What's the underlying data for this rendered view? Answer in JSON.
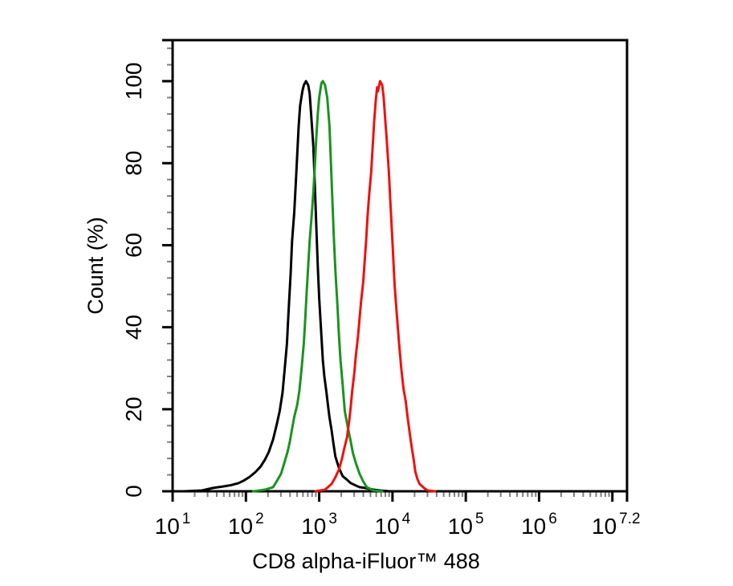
{
  "figure": {
    "background": "#ffffff",
    "kind": "flow-cytometry-histogram-overlay"
  },
  "chart_data": {
    "type": "line",
    "title": "",
    "xlabel": "CD8 alpha-iFluor™ 488",
    "ylabel": "Count  (%)",
    "grid": false,
    "legend": "none",
    "x_scale": "log10",
    "x_range_log10": [
      1,
      7.2
    ],
    "y_range": [
      0,
      110
    ],
    "y_major_ticks": [
      0,
      20,
      40,
      60,
      80,
      100
    ],
    "y_minor_step": 4,
    "x_major_ticks_log10": [
      1,
      2,
      3,
      4,
      5,
      6,
      7,
      7.2
    ],
    "x_minor_multiples": [
      2,
      3,
      4,
      5,
      6,
      7,
      8,
      9
    ],
    "x_tick_labels": [
      {
        "base": "10",
        "exp": "1",
        "pos": 1.0
      },
      {
        "base": "10",
        "exp": "2",
        "pos": 2.0
      },
      {
        "base": "10",
        "exp": "3",
        "pos": 3.0
      },
      {
        "base": "10",
        "exp": "4",
        "pos": 4.0
      },
      {
        "base": "10",
        "exp": "5",
        "pos": 5.0
      },
      {
        "base": "10",
        "exp": "6",
        "pos": 6.0
      },
      {
        "base": "10",
        "exp": "7.2",
        "pos": 7.05
      }
    ],
    "axis_color": "#000000",
    "minor_tick_color": "#808080",
    "series": [
      {
        "name": "black-histogram",
        "color": "#000000",
        "peak_log10": 2.82,
        "peak_x_approx": 660,
        "peak_pct": 100,
        "points": [
          [
            1.15,
            0
          ],
          [
            1.4,
            0.2
          ],
          [
            1.55,
            0.8
          ],
          [
            1.7,
            1.2
          ],
          [
            1.8,
            1.5
          ],
          [
            1.9,
            2.0
          ],
          [
            1.97,
            2.6
          ],
          [
            2.05,
            3.5
          ],
          [
            2.13,
            4.7
          ],
          [
            2.2,
            6.0
          ],
          [
            2.26,
            7.7
          ],
          [
            2.31,
            9.5
          ],
          [
            2.37,
            12.6
          ],
          [
            2.42,
            16.2
          ],
          [
            2.46,
            19.5
          ],
          [
            2.5,
            24
          ],
          [
            2.53,
            30
          ],
          [
            2.56,
            36
          ],
          [
            2.58,
            43
          ],
          [
            2.61,
            53
          ],
          [
            2.63,
            61
          ],
          [
            2.66,
            68
          ],
          [
            2.68,
            75
          ],
          [
            2.7,
            82
          ],
          [
            2.72,
            89
          ],
          [
            2.74,
            94
          ],
          [
            2.77,
            97.5
          ],
          [
            2.79,
            99
          ],
          [
            2.82,
            100
          ],
          [
            2.85,
            99
          ],
          [
            2.87,
            97
          ],
          [
            2.89,
            92
          ],
          [
            2.92,
            84
          ],
          [
            2.94,
            75
          ],
          [
            2.96,
            65
          ],
          [
            2.98,
            55
          ],
          [
            3.0,
            47
          ],
          [
            3.03,
            38
          ],
          [
            3.05,
            32
          ],
          [
            3.07,
            28
          ],
          [
            3.1,
            24
          ],
          [
            3.12,
            21
          ],
          [
            3.14,
            18
          ],
          [
            3.17,
            14.8
          ],
          [
            3.19,
            12.2
          ],
          [
            3.22,
            8.5
          ],
          [
            3.27,
            5.7
          ],
          [
            3.32,
            3.7
          ],
          [
            3.38,
            2.8
          ],
          [
            3.43,
            2.0
          ],
          [
            3.5,
            1.4
          ],
          [
            3.55,
            1.0
          ],
          [
            3.63,
            0.8
          ],
          [
            3.74,
            0.4
          ],
          [
            3.83,
            0.2
          ],
          [
            3.96,
            0
          ]
        ]
      },
      {
        "name": "green-histogram",
        "color": "#1a9320",
        "peak_log10": 3.06,
        "peak_x_approx": 1150,
        "peak_pct": 100,
        "points": [
          [
            2.1,
            0
          ],
          [
            2.26,
            0.4
          ],
          [
            2.37,
            1.0
          ],
          [
            2.42,
            2.4
          ],
          [
            2.48,
            4.3
          ],
          [
            2.52,
            6.7
          ],
          [
            2.57,
            9.7
          ],
          [
            2.6,
            12.2
          ],
          [
            2.63,
            15.2
          ],
          [
            2.66,
            18.1
          ],
          [
            2.7,
            21.1
          ],
          [
            2.73,
            24.5
          ],
          [
            2.76,
            30
          ],
          [
            2.79,
            36
          ],
          [
            2.81,
            42
          ],
          [
            2.83,
            49
          ],
          [
            2.85,
            55
          ],
          [
            2.87,
            61
          ],
          [
            2.9,
            68
          ],
          [
            2.92,
            73
          ],
          [
            2.94,
            79
          ],
          [
            2.96,
            86
          ],
          [
            2.98,
            92
          ],
          [
            3.0,
            96
          ],
          [
            3.03,
            99.5
          ],
          [
            3.05,
            100
          ],
          [
            3.08,
            99
          ],
          [
            3.11,
            96
          ],
          [
            3.14,
            89
          ],
          [
            3.16,
            80
          ],
          [
            3.18,
            71
          ],
          [
            3.2,
            62
          ],
          [
            3.22,
            54
          ],
          [
            3.25,
            45
          ],
          [
            3.27,
            38
          ],
          [
            3.29,
            32
          ],
          [
            3.32,
            26
          ],
          [
            3.35,
            19.5
          ],
          [
            3.39,
            15.6
          ],
          [
            3.43,
            12.2
          ],
          [
            3.46,
            9.3
          ],
          [
            3.5,
            6.9
          ],
          [
            3.55,
            4.3
          ],
          [
            3.6,
            2.4
          ],
          [
            3.65,
            1.0
          ],
          [
            3.74,
            0.2
          ],
          [
            3.86,
            0
          ]
        ]
      },
      {
        "name": "red-histogram",
        "color": "#ee1111",
        "peak_log10": 3.83,
        "peak_x_approx": 6800,
        "peak_pct": 100,
        "points": [
          [
            2.95,
            0
          ],
          [
            3.08,
            0.4
          ],
          [
            3.17,
            1.8
          ],
          [
            3.22,
            3.4
          ],
          [
            3.27,
            5.3
          ],
          [
            3.31,
            7.9
          ],
          [
            3.34,
            10.3
          ],
          [
            3.38,
            13.2
          ],
          [
            3.41,
            17.2
          ],
          [
            3.43,
            20.5
          ],
          [
            3.45,
            24.5
          ],
          [
            3.48,
            29
          ],
          [
            3.5,
            33
          ],
          [
            3.53,
            38
          ],
          [
            3.55,
            42
          ],
          [
            3.57,
            46
          ],
          [
            3.6,
            51
          ],
          [
            3.62,
            56
          ],
          [
            3.64,
            61
          ],
          [
            3.66,
            67
          ],
          [
            3.68,
            72
          ],
          [
            3.71,
            78
          ],
          [
            3.73,
            84
          ],
          [
            3.75,
            90
          ],
          [
            3.77,
            95
          ],
          [
            3.79,
            98.5
          ],
          [
            3.8,
            97.5
          ],
          [
            3.83,
            100
          ],
          [
            3.86,
            99
          ],
          [
            3.88,
            96
          ],
          [
            3.9,
            91
          ],
          [
            3.92,
            86
          ],
          [
            3.95,
            78
          ],
          [
            3.97,
            71
          ],
          [
            3.99,
            64
          ],
          [
            4.01,
            57
          ],
          [
            4.03,
            50
          ],
          [
            4.06,
            43
          ],
          [
            4.09,
            36
          ],
          [
            4.12,
            30
          ],
          [
            4.15,
            25
          ],
          [
            4.18,
            22
          ],
          [
            4.21,
            17.6
          ],
          [
            4.25,
            12.2
          ],
          [
            4.29,
            7.7
          ],
          [
            4.31,
            4.9
          ],
          [
            4.34,
            3.0
          ],
          [
            4.37,
            1.8
          ],
          [
            4.43,
            0.8
          ],
          [
            4.48,
            0.2
          ],
          [
            4.58,
            0
          ]
        ]
      }
    ]
  }
}
